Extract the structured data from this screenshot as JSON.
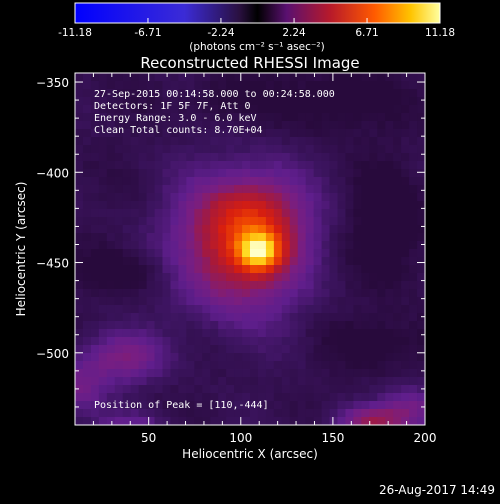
{
  "chart_data": {
    "type": "heatmap",
    "title": "Reconstructed RHESSI Image",
    "xlabel": "Heliocentric X (arcsec)",
    "ylabel": "Heliocentric Y (arcsec)",
    "xlim": [
      10,
      200
    ],
    "ylim": [
      -540,
      -345
    ],
    "xticks": [
      50,
      100,
      150,
      200
    ],
    "yticks": [
      -350,
      -400,
      -450,
      -500
    ],
    "colorbar": {
      "ticks": [
        "-11.18",
        "-6.71",
        "-2.24",
        "2.24",
        "6.71",
        "11.18"
      ],
      "range": [
        -11.18,
        11.18
      ],
      "unit_label": "(photons cm⁻² s⁻¹ asec⁻²)"
    },
    "peak": {
      "x": 110,
      "y": -444,
      "value": 11.18
    },
    "background_level": 0.6,
    "blobs": [
      {
        "x": 110,
        "y": -444,
        "sx": 8,
        "sy": 7,
        "amp": 5.5
      },
      {
        "x": 100,
        "y": -440,
        "sx": 24,
        "sy": 26,
        "amp": 5.5
      },
      {
        "x": 110,
        "y": -422,
        "sx": 18,
        "sy": 14,
        "amp": 1.8
      },
      {
        "x": 35,
        "y": -503,
        "sx": 16,
        "sy": 10,
        "amp": 2.8
      },
      {
        "x": 12,
        "y": -520,
        "sx": 10,
        "sy": 10,
        "amp": 2.2
      },
      {
        "x": 170,
        "y": -538,
        "sx": 14,
        "sy": 6,
        "amp": 3.2
      },
      {
        "x": 195,
        "y": -530,
        "sx": 12,
        "sy": 8,
        "amp": 2.4
      },
      {
        "x": 40,
        "y": -540,
        "sx": 14,
        "sy": 5,
        "amp": 1.6
      }
    ],
    "dark_regions": [
      {
        "x": 180,
        "y": -430,
        "sx": 14,
        "sy": 22,
        "amp": 1.4
      },
      {
        "x": 150,
        "y": -360,
        "sx": 22,
        "sy": 12,
        "amp": 1.2
      },
      {
        "x": 180,
        "y": -495,
        "sx": 22,
        "sy": 10,
        "amp": 1.0
      },
      {
        "x": 40,
        "y": -455,
        "sx": 20,
        "sy": 8,
        "amp": 1.0
      },
      {
        "x": 90,
        "y": -360,
        "sx": 14,
        "sy": 10,
        "amp": 0.8
      }
    ]
  },
  "annotations": {
    "line1": "27-Sep-2015 00:14:58.000 to 00:24:58.000",
    "line2": "Detectors: 1F 5F 7F, Att 0",
    "line3": "Energy Range: 3.0 - 6.0 keV",
    "line4": "Clean    Total counts: 8.70E+04",
    "peak_label": "Position of Peak = [110,-444]"
  },
  "footer": {
    "timestamp": "26-Aug-2017 14:49"
  }
}
